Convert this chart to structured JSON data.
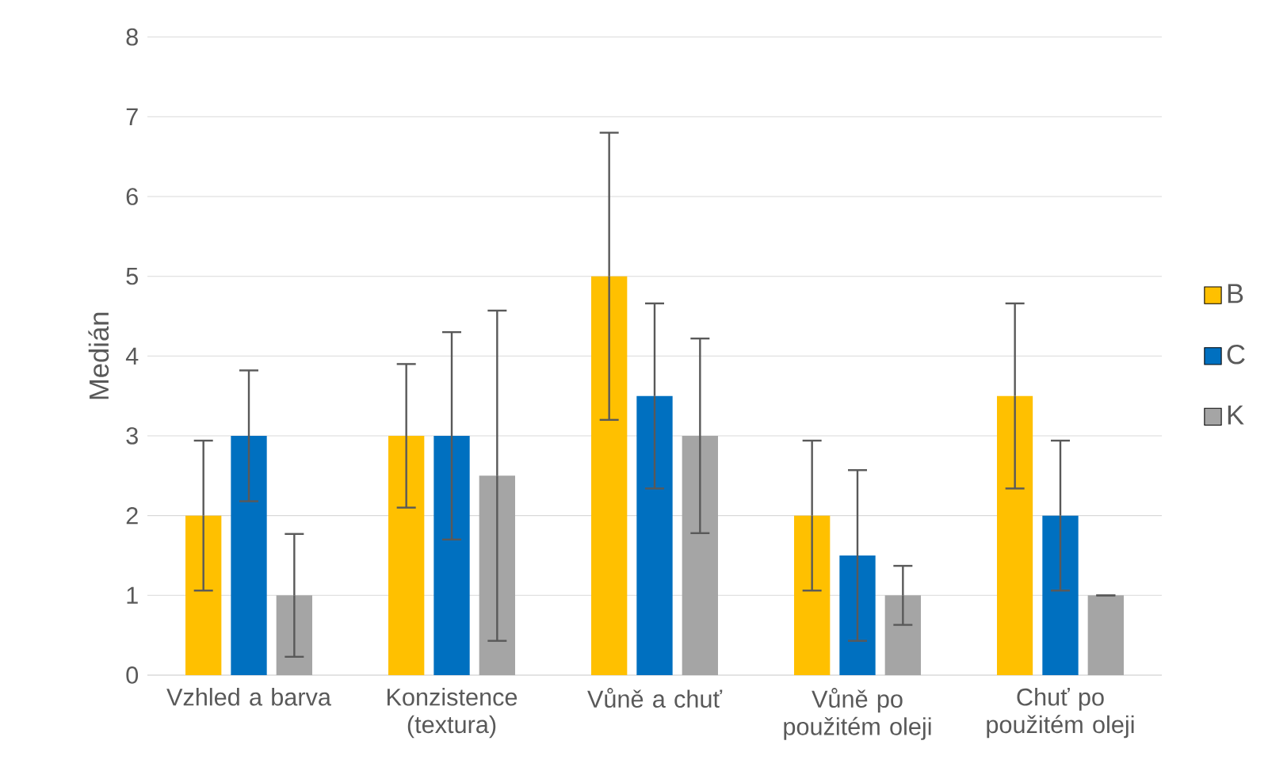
{
  "chart_data": {
    "type": "bar",
    "ylabel": "Medián",
    "categories": [
      "Vzhled a barva",
      "Konzistence (textura)",
      "Vůně a chuť",
      "Vůně po použitém oleji",
      "Chuť po použitém oleji"
    ],
    "series": [
      {
        "name": "B",
        "color": "#ffc000",
        "values": [
          2,
          3,
          5,
          2,
          3.5
        ],
        "errors": [
          0.94,
          0.9,
          1.8,
          0.94,
          1.16
        ]
      },
      {
        "name": "C",
        "color": "#0070c0",
        "values": [
          3,
          3,
          3.5,
          1.5,
          2
        ],
        "errors": [
          0.82,
          1.3,
          1.16,
          1.07,
          0.94
        ]
      },
      {
        "name": "K",
        "color": "#a5a5a5",
        "values": [
          1,
          2.5,
          3,
          1,
          1
        ],
        "errors": [
          0.77,
          2.07,
          1.22,
          0.37,
          0
        ]
      }
    ],
    "ylim": [
      0,
      8
    ],
    "yticks": [
      0,
      1,
      2,
      3,
      4,
      5,
      6,
      7,
      8
    ],
    "grid": "y",
    "legend": "right"
  }
}
